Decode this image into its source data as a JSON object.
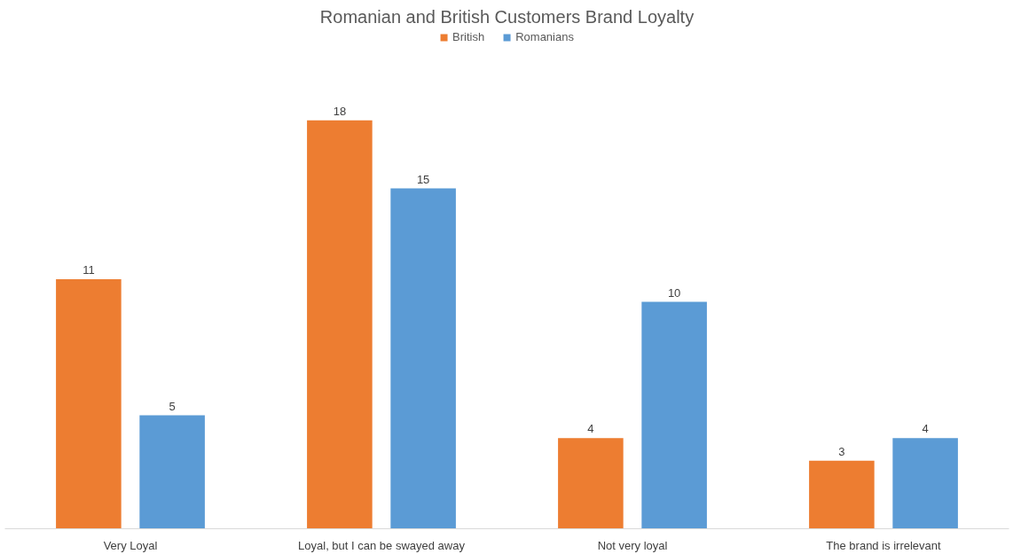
{
  "chart_data": {
    "type": "bar",
    "title": "Romanian and British Customers Brand Loyalty",
    "categories": [
      "Very Loyal",
      "Loyal, but I can be swayed away",
      "Not very loyal",
      "The brand is irrelevant"
    ],
    "series": [
      {
        "name": "British",
        "color": "#ed7d31",
        "values": [
          11,
          18,
          4,
          3
        ]
      },
      {
        "name": "Romanians",
        "color": "#5b9bd5",
        "values": [
          5,
          15,
          10,
          4
        ]
      }
    ],
    "data_labels": true,
    "legend": "top",
    "grid": false
  }
}
